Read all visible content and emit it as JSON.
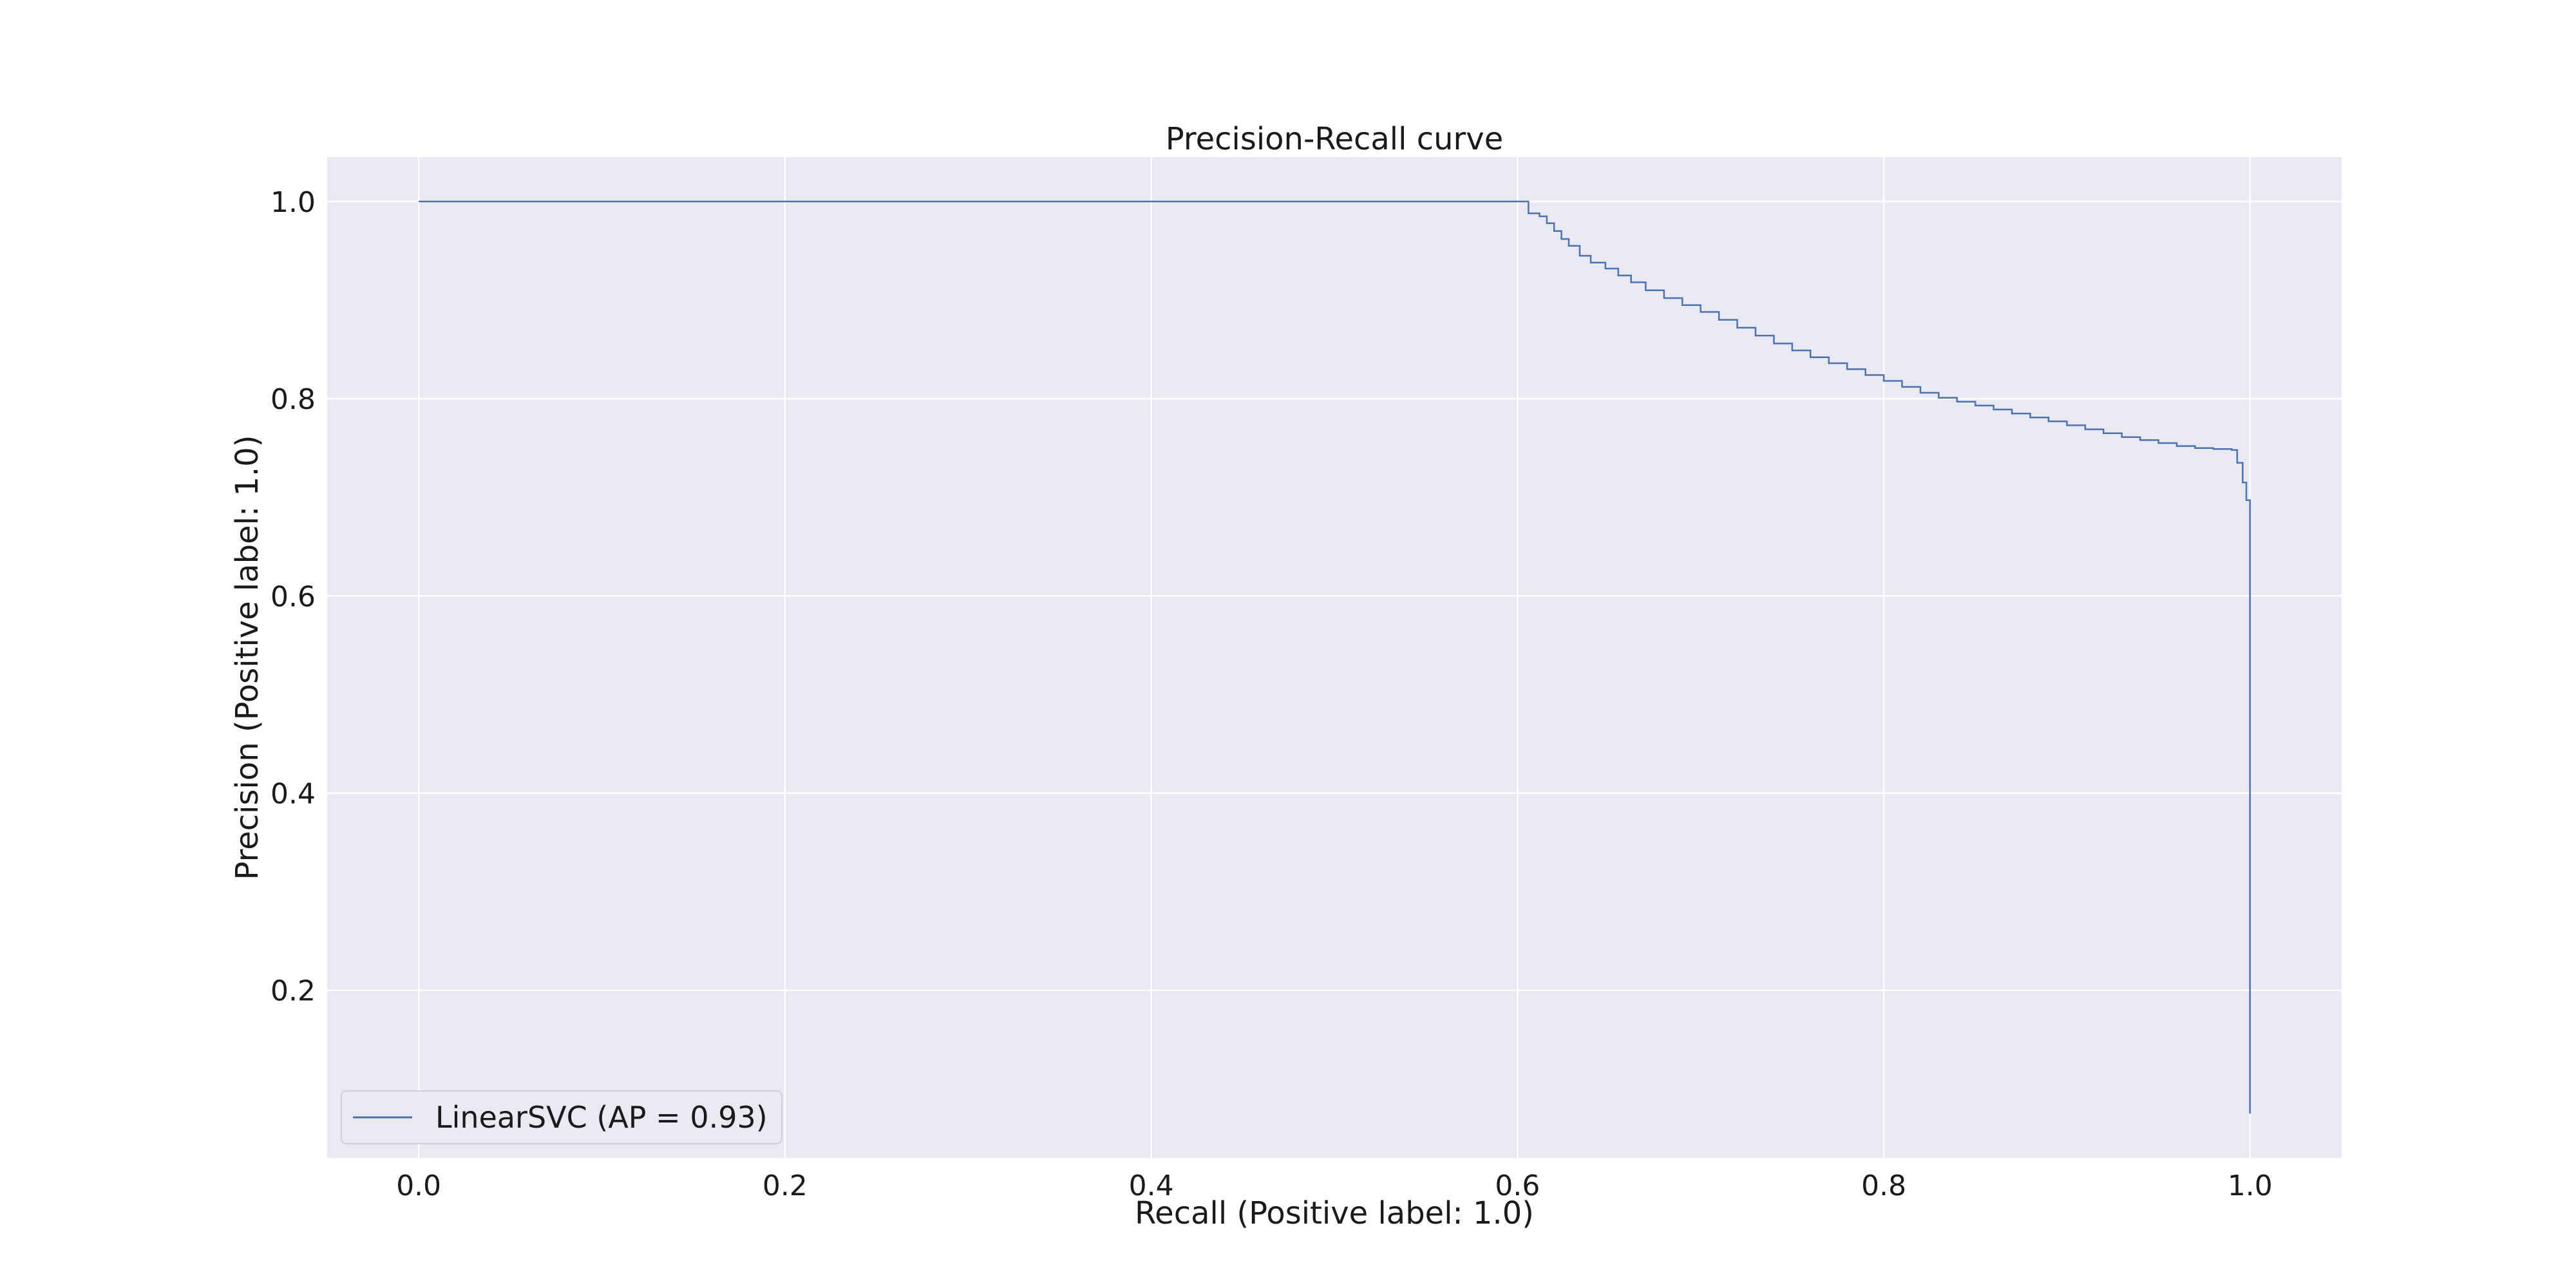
{
  "chart_data": {
    "type": "line",
    "title": "Precision-Recall curve",
    "xlabel": "Recall (Positive label: 1.0)",
    "ylabel": "Precision (Positive label: 1.0)",
    "xlim": [
      -0.05,
      1.05
    ],
    "ylim": [
      0.03,
      1.045
    ],
    "xticks": [
      0.0,
      0.2,
      0.4,
      0.6,
      0.8,
      1.0
    ],
    "xtick_labels": [
      "0.0",
      "0.2",
      "0.4",
      "0.6",
      "0.8",
      "1.0"
    ],
    "yticks": [
      0.2,
      0.4,
      0.6,
      0.8,
      1.0
    ],
    "ytick_labels": [
      "0.2",
      "0.4",
      "0.6",
      "0.8",
      "1.0"
    ],
    "grid": true,
    "legend_position": "lower-left",
    "series": [
      {
        "name": "LinearSVC (AP = 0.93)",
        "color": "#4c72b0",
        "step": true,
        "x": [
          0.0,
          0.606,
          0.606,
          0.612,
          0.616,
          0.62,
          0.624,
          0.628,
          0.634,
          0.64,
          0.648,
          0.655,
          0.662,
          0.67,
          0.68,
          0.69,
          0.7,
          0.71,
          0.72,
          0.73,
          0.74,
          0.75,
          0.76,
          0.77,
          0.78,
          0.79,
          0.8,
          0.81,
          0.82,
          0.83,
          0.84,
          0.85,
          0.86,
          0.87,
          0.88,
          0.89,
          0.9,
          0.91,
          0.92,
          0.93,
          0.94,
          0.95,
          0.96,
          0.97,
          0.98,
          0.99,
          0.993,
          0.996,
          0.998,
          1.0,
          1.0
        ],
        "y": [
          1.0,
          1.0,
          0.988,
          0.985,
          0.978,
          0.97,
          0.962,
          0.955,
          0.945,
          0.938,
          0.932,
          0.925,
          0.918,
          0.91,
          0.902,
          0.895,
          0.888,
          0.88,
          0.872,
          0.864,
          0.856,
          0.849,
          0.842,
          0.836,
          0.83,
          0.824,
          0.818,
          0.812,
          0.806,
          0.801,
          0.797,
          0.793,
          0.789,
          0.785,
          0.781,
          0.777,
          0.773,
          0.769,
          0.765,
          0.761,
          0.758,
          0.755,
          0.752,
          0.75,
          0.749,
          0.748,
          0.735,
          0.715,
          0.697,
          0.697,
          0.075
        ]
      }
    ]
  }
}
